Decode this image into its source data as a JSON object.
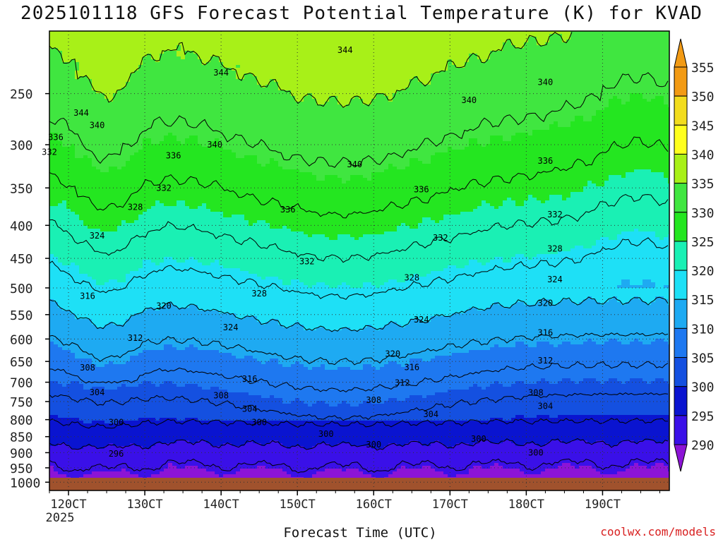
{
  "title": "2025101118 GFS Forecast Potential Temperature (K) for KVAD",
  "credit": "coolwx.com/models",
  "chart_data": {
    "type": "contour",
    "title": "2025101118 GFS Forecast Potential Temperature (K) for KVAD",
    "xlabel": "Forecast Time (UTC)",
    "ylabel": "",
    "x_range": [
      "11/18",
      "19/21"
    ],
    "x_ticks": [
      {
        "label": "120CT",
        "sub": "2025"
      },
      {
        "label": "130CT",
        "sub": ""
      },
      {
        "label": "140CT",
        "sub": ""
      },
      {
        "label": "150CT",
        "sub": ""
      },
      {
        "label": "160CT",
        "sub": ""
      },
      {
        "label": "170CT",
        "sub": ""
      },
      {
        "label": "180CT",
        "sub": ""
      },
      {
        "label": "190CT",
        "sub": ""
      }
    ],
    "y_axis": "pressure (log, reversed)",
    "y_ticks": [
      250,
      300,
      350,
      400,
      450,
      500,
      550,
      600,
      650,
      700,
      750,
      800,
      850,
      900,
      950,
      1000
    ],
    "y_range": [
      200,
      1030
    ],
    "colorbar_levels": [
      290,
      295,
      300,
      305,
      310,
      315,
      320,
      325,
      330,
      335,
      340,
      345,
      350,
      355
    ],
    "colorbar_colors": [
      "#8c14d6",
      "#3a10e8",
      "#0a14d0",
      "#1450e0",
      "#1e78f0",
      "#1eaaf2",
      "#1ee0f6",
      "#1af0b4",
      "#24e620",
      "#40e640",
      "#a8f018",
      "#ffff1e",
      "#f2dc1e",
      "#f29a14"
    ],
    "contour_labels": [
      {
        "text": "344",
        "time": "12 04",
        "p": 268
      },
      {
        "text": "344",
        "time": "14 00",
        "p": 232
      },
      {
        "text": "344",
        "time": "15 15",
        "p": 214
      },
      {
        "text": "340",
        "time": "12 09",
        "p": 280
      },
      {
        "text": "340",
        "time": "13 22",
        "p": 300
      },
      {
        "text": "340",
        "time": "15 18",
        "p": 322
      },
      {
        "text": "340",
        "time": "17 06",
        "p": 256
      },
      {
        "text": "340",
        "time": "18 06",
        "p": 240
      },
      {
        "text": "336",
        "time": "11 20",
        "p": 292
      },
      {
        "text": "336",
        "time": "13 09",
        "p": 312
      },
      {
        "text": "336",
        "time": "14 21",
        "p": 378
      },
      {
        "text": "336",
        "time": "16 15",
        "p": 352
      },
      {
        "text": "336",
        "time": "18 06",
        "p": 318
      },
      {
        "text": "332",
        "time": "11 18",
        "p": 308
      },
      {
        "text": "332",
        "time": "13 06",
        "p": 350
      },
      {
        "text": "332",
        "time": "15 03",
        "p": 455
      },
      {
        "text": "332",
        "time": "16 21",
        "p": 418
      },
      {
        "text": "332",
        "time": "18 09",
        "p": 385
      },
      {
        "text": "328",
        "time": "12 21",
        "p": 375
      },
      {
        "text": "328",
        "time": "14 12",
        "p": 510
      },
      {
        "text": "328",
        "time": "16 12",
        "p": 482
      },
      {
        "text": "328",
        "time": "18 09",
        "p": 435
      },
      {
        "text": "324",
        "time": "12 09",
        "p": 415
      },
      {
        "text": "324",
        "time": "14 03",
        "p": 576
      },
      {
        "text": "324",
        "time": "16 15",
        "p": 560
      },
      {
        "text": "324",
        "time": "18 09",
        "p": 485
      },
      {
        "text": "320",
        "time": "13 06",
        "p": 533
      },
      {
        "text": "320",
        "time": "16 06",
        "p": 633
      },
      {
        "text": "320",
        "time": "18 06",
        "p": 528
      },
      {
        "text": "316",
        "time": "12 06",
        "p": 515
      },
      {
        "text": "316",
        "time": "14 09",
        "p": 692
      },
      {
        "text": "316",
        "time": "16 12",
        "p": 664
      },
      {
        "text": "316",
        "time": "18 06",
        "p": 587
      },
      {
        "text": "312",
        "time": "12 21",
        "p": 598
      },
      {
        "text": "312",
        "time": "16 09",
        "p": 702
      },
      {
        "text": "312",
        "time": "18 06",
        "p": 648
      },
      {
        "text": "308",
        "time": "12 06",
        "p": 665
      },
      {
        "text": "308",
        "time": "14 00",
        "p": 734
      },
      {
        "text": "308",
        "time": "16 00",
        "p": 746
      },
      {
        "text": "308",
        "time": "18 03",
        "p": 727
      },
      {
        "text": "304",
        "time": "12 09",
        "p": 726
      },
      {
        "text": "304",
        "time": "14 09",
        "p": 770
      },
      {
        "text": "304",
        "time": "16 18",
        "p": 785
      },
      {
        "text": "304",
        "time": "18 06",
        "p": 762
      },
      {
        "text": "300",
        "time": "12 15",
        "p": 808
      },
      {
        "text": "300",
        "time": "14 12",
        "p": 808
      },
      {
        "text": "300",
        "time": "15 09",
        "p": 842
      },
      {
        "text": "300",
        "time": "16 00",
        "p": 875
      },
      {
        "text": "300",
        "time": "17 09",
        "p": 857
      },
      {
        "text": "300",
        "time": "18 03",
        "p": 900
      },
      {
        "text": "296",
        "time": "12 15",
        "p": 904
      }
    ]
  }
}
